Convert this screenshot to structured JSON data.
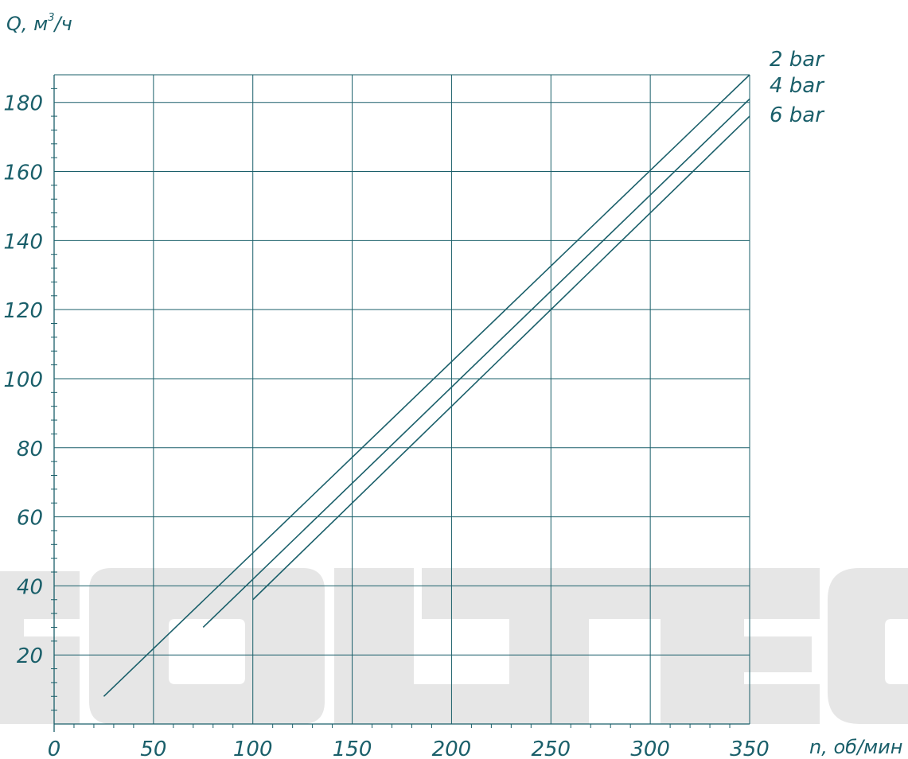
{
  "chart_data": {
    "type": "line",
    "title": "",
    "xlabel": "n, об/мин",
    "ylabel_main": "Q, м",
    "ylabel_sup": "3",
    "ylabel_tail": "/ч",
    "xlim": [
      0,
      350
    ],
    "ylim": [
      0,
      188
    ],
    "x_ticks": [
      0,
      50,
      100,
      150,
      200,
      250,
      300,
      350
    ],
    "x_tick_labels": [
      "0",
      "50",
      "100",
      "150",
      "200",
      "250",
      "300",
      "350"
    ],
    "y_ticks": [
      20,
      40,
      60,
      80,
      100,
      120,
      140,
      160,
      180
    ],
    "y_tick_labels": [
      "20",
      "40",
      "60",
      "80",
      "100",
      "120",
      "140",
      "160",
      "180"
    ],
    "grid": true,
    "legend": "right-of-plot",
    "series": [
      {
        "name": "2 bar",
        "x": [
          25,
          350
        ],
        "y": [
          8,
          188
        ]
      },
      {
        "name": "4 bar",
        "x": [
          75,
          350
        ],
        "y": [
          28,
          181
        ]
      },
      {
        "name": "6 bar",
        "x": [
          100,
          350
        ],
        "y": [
          36,
          176
        ]
      }
    ],
    "colors": {
      "line": "#1a5f6a",
      "watermark": "#e6e6e6"
    }
  },
  "watermark": {
    "text": "SOLTEC"
  }
}
